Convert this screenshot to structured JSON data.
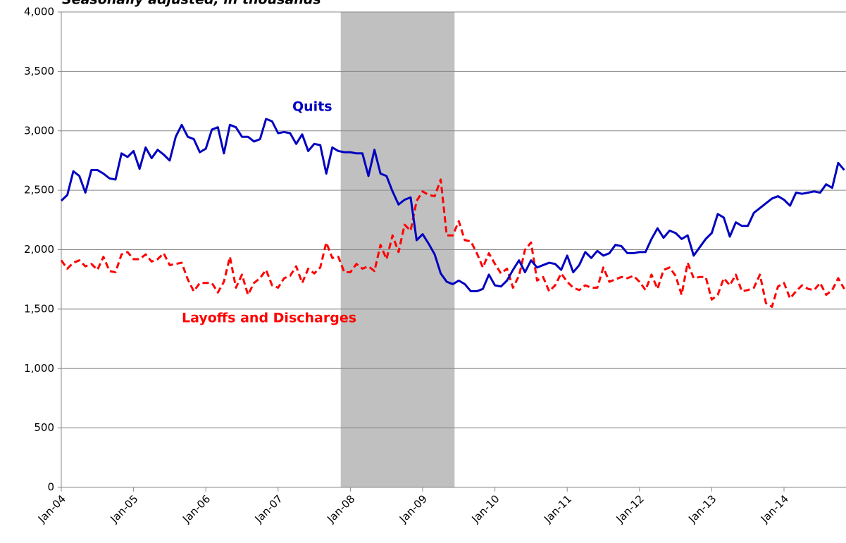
{
  "chart_data": {
    "type": "line",
    "title": "Seasonally adjusted, in thousands",
    "categories": [
      "Jan-04",
      null,
      null,
      null,
      null,
      null,
      null,
      null,
      null,
      null,
      null,
      null,
      "Jan-05",
      null,
      null,
      null,
      null,
      null,
      null,
      null,
      null,
      null,
      null,
      null,
      "Jan-06",
      null,
      null,
      null,
      null,
      null,
      null,
      null,
      null,
      null,
      null,
      null,
      "Jan-07",
      null,
      null,
      null,
      null,
      null,
      null,
      null,
      null,
      null,
      null,
      null,
      "Jan-08",
      null,
      null,
      null,
      null,
      null,
      null,
      null,
      null,
      null,
      null,
      null,
      "Jan-09",
      null,
      null,
      null,
      null,
      null,
      null,
      null,
      null,
      null,
      null,
      null,
      "Jan-10",
      null,
      null,
      null,
      null,
      null,
      null,
      null,
      null,
      null,
      null,
      null,
      "Jan-11",
      null,
      null,
      null,
      null,
      null,
      null,
      null,
      null,
      null,
      null,
      null,
      "Jan-12",
      null,
      null,
      null,
      null,
      null,
      null,
      null,
      null,
      null,
      null,
      null,
      "Jan-13",
      null,
      null,
      null,
      null,
      null,
      null,
      null,
      null,
      null,
      null,
      null,
      "Jan-14",
      null,
      null,
      null,
      null,
      null,
      null,
      null,
      null,
      null,
      null
    ],
    "series": [
      {
        "name": "Quits",
        "color": "#0000c0",
        "dash": false,
        "values": [
          2412,
          2460,
          2660,
          2620,
          2480,
          2670,
          2670,
          2640,
          2600,
          2590,
          2810,
          2780,
          2830,
          2680,
          2860,
          2770,
          2840,
          2800,
          2750,
          2950,
          3050,
          2950,
          2930,
          2820,
          2850,
          3010,
          3030,
          2810,
          3050,
          3030,
          2950,
          2950,
          2910,
          2930,
          3100,
          3080,
          2980,
          2990,
          2980,
          2890,
          2970,
          2830,
          2890,
          2880,
          2640,
          2860,
          2830,
          2820,
          2820,
          2810,
          2810,
          2620,
          2840,
          2640,
          2620,
          2490,
          2380,
          2420,
          2440,
          2080,
          2130,
          2050,
          1960,
          1800,
          1730,
          1710,
          1740,
          1710,
          1650,
          1650,
          1670,
          1790,
          1700,
          1690,
          1740,
          1830,
          1910,
          1810,
          1910,
          1850,
          1870,
          1890,
          1880,
          1830,
          1950,
          1810,
          1870,
          1980,
          1930,
          1990,
          1950,
          1970,
          2040,
          2030,
          1970,
          1970,
          1980,
          1980,
          2090,
          2180,
          2100,
          2160,
          2140,
          2090,
          2120,
          1950,
          2020,
          2090,
          2140,
          2300,
          2270,
          2110,
          2230,
          2200,
          2200,
          2310,
          2350,
          2390,
          2430,
          2450,
          2420,
          2370,
          2480,
          2470,
          2480,
          2490,
          2480,
          2550,
          2520,
          2730,
          2670
        ]
      },
      {
        "name": "Layoffs and Discharges",
        "color": "#ff0000",
        "dash": true,
        "values": [
          1910,
          1840,
          1890,
          1910,
          1860,
          1880,
          1830,
          1940,
          1820,
          1810,
          1960,
          1980,
          1920,
          1920,
          1960,
          1900,
          1920,
          1970,
          1870,
          1880,
          1890,
          1750,
          1650,
          1720,
          1720,
          1720,
          1640,
          1730,
          1940,
          1680,
          1790,
          1620,
          1720,
          1760,
          1830,
          1700,
          1680,
          1760,
          1780,
          1860,
          1720,
          1840,
          1800,
          1850,
          2060,
          1930,
          1940,
          1810,
          1810,
          1880,
          1840,
          1860,
          1820,
          2040,
          1920,
          2120,
          1980,
          2210,
          2160,
          2410,
          2490,
          2460,
          2450,
          2590,
          2120,
          2120,
          2240,
          2080,
          2070,
          1970,
          1850,
          1970,
          1880,
          1800,
          1840,
          1680,
          1780,
          2000,
          2060,
          1740,
          1770,
          1650,
          1700,
          1800,
          1730,
          1680,
          1660,
          1700,
          1680,
          1680,
          1850,
          1730,
          1750,
          1770,
          1760,
          1780,
          1730,
          1660,
          1790,
          1670,
          1830,
          1850,
          1780,
          1620,
          1890,
          1760,
          1770,
          1770,
          1580,
          1620,
          1760,
          1700,
          1790,
          1650,
          1660,
          1680,
          1790,
          1550,
          1520,
          1690,
          1720,
          1590,
          1650,
          1700,
          1670,
          1660,
          1720,
          1620,
          1660,
          1760,
          1670
        ]
      }
    ],
    "shade": [
      46.4,
      65.3
    ],
    "shade_color": "#c0c0c0",
    "ylim": [
      0,
      4000
    ],
    "yticks": [
      0,
      500,
      {
        "value": 1000,
        "label": "1,000"
      },
      {
        "value": 1500,
        "label": "1,500"
      },
      {
        "value": 2000,
        "label": "2,000"
      },
      {
        "value": 2500,
        "label": "2,500"
      },
      {
        "value": 3000,
        "label": "3,000"
      },
      {
        "value": 3500,
        "label": "3,500"
      },
      {
        "value": 4000,
        "label": "4,000"
      }
    ],
    "grid": true
  }
}
